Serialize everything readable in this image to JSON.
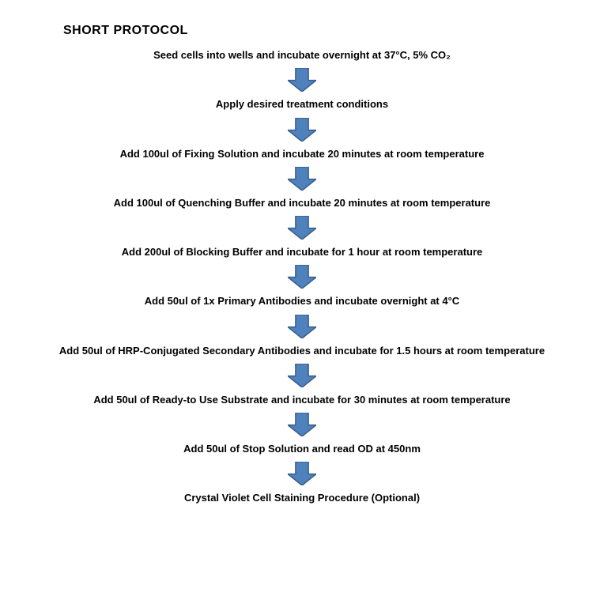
{
  "title": "SHORT PROTOCOL",
  "title_fontsize": 16,
  "step_fontsize": 13,
  "text_color": "#000000",
  "background_color": "#ffffff",
  "arrow": {
    "fill": "#4f81bd",
    "stroke": "#385d8a",
    "stroke_width": 1.5,
    "width": 36,
    "height": 30
  },
  "steps": [
    "Seed cells into wells and incubate overnight at 37°C, 5% CO₂",
    "Apply desired treatment conditions",
    "Add 100ul of Fixing Solution and incubate 20 minutes at room temperature",
    "Add 100ul of Quenching Buffer and incubate 20 minutes at room temperature",
    "Add 200ul of Blocking Buffer and incubate for 1 hour at room temperature",
    "Add 50ul of 1x Primary Antibodies and incubate overnight at 4°C",
    "Add 50ul of HRP-Conjugated Secondary Antibodies and incubate for 1.5 hours at room temperature",
    "Add 50ul of Ready-to Use Substrate and incubate for 30 minutes at room temperature",
    "Add 50ul of Stop Solution and read OD at 450nm",
    "Crystal Violet Cell Staining Procedure (Optional)"
  ]
}
